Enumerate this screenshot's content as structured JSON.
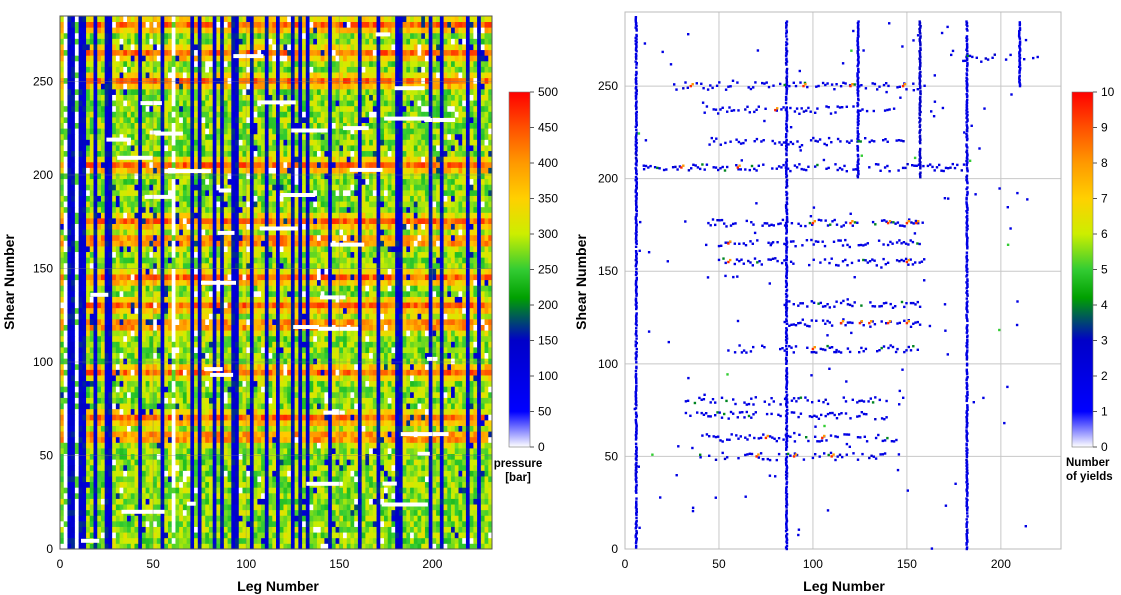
{
  "chart_data": [
    {
      "type": "heatmap",
      "xlabel": "Leg Number",
      "ylabel": "Shear Number",
      "xlim": [
        0,
        232
      ],
      "ylim": [
        0,
        285
      ],
      "xticks": [
        0,
        50,
        100,
        150,
        200
      ],
      "yticks": [
        0,
        50,
        100,
        150,
        200,
        250
      ],
      "grid": true,
      "colorbar": {
        "label_line1": "pressure",
        "label_line2": "[bar]",
        "min": 0,
        "max": 500,
        "ticks": [
          0,
          50,
          100,
          150,
          200,
          250,
          300,
          350,
          400,
          450,
          500
        ]
      },
      "stripes": {
        "blue_legs": [
          4,
          6,
          10,
          13,
          18,
          24,
          27,
          42,
          55,
          70,
          75,
          82,
          86,
          93,
          95,
          103,
          110,
          116,
          125,
          128,
          133,
          145,
          160,
          170,
          180,
          181,
          182,
          198,
          205,
          219,
          225
        ],
        "white_legs": [
          2,
          3,
          9,
          22,
          30,
          48,
          61
        ],
        "red_shear_bands": [
          205,
          175,
          165,
          130,
          120,
          70,
          60,
          250,
          265,
          280,
          145,
          95
        ]
      }
    },
    {
      "type": "scatter",
      "xlabel": "Leg Number",
      "ylabel": "Shear Number",
      "xlim": [
        0,
        232
      ],
      "ylim": [
        0,
        290
      ],
      "xticks": [
        0,
        50,
        100,
        150,
        200
      ],
      "yticks": [
        0,
        50,
        100,
        150,
        200,
        250
      ],
      "grid": true,
      "colorbar": {
        "label_line1": "Number",
        "label_line2": "of yields",
        "min": 0,
        "max": 10,
        "ticks": [
          0,
          1,
          2,
          3,
          4,
          5,
          6,
          7,
          8,
          9,
          10
        ]
      },
      "columns": [
        {
          "x": 6,
          "y_range": [
            0,
            288
          ],
          "value": 2
        },
        {
          "x": 86,
          "y_range": [
            0,
            285
          ],
          "value": 2
        },
        {
          "x": 182,
          "y_range": [
            0,
            285
          ],
          "value": 2
        },
        {
          "x": 157,
          "y_range": [
            200,
            285
          ],
          "value": 3
        },
        {
          "x": 124,
          "y_range": [
            200,
            285
          ],
          "value": 2
        },
        {
          "x": 210,
          "y_range": [
            250,
            285
          ],
          "value": 2
        }
      ],
      "rows": [
        {
          "y": 250,
          "x_range": [
            25,
            160
          ],
          "value": 2,
          "hot": [
            35,
            95,
            120,
            148
          ]
        },
        {
          "y": 265,
          "x_range": [
            180,
            220
          ],
          "value": 2,
          "hot": []
        },
        {
          "y": 237,
          "x_range": [
            40,
            145
          ],
          "value": 2,
          "hot": [
            80
          ]
        },
        {
          "y": 220,
          "x_range": [
            45,
            150
          ],
          "value": 2,
          "hot": []
        },
        {
          "y": 206,
          "x_range": [
            10,
            182
          ],
          "value": 2,
          "hot": [
            30,
            60
          ]
        },
        {
          "y": 176,
          "x_range": [
            42,
            160
          ],
          "value": 2,
          "hot": [
            100,
            120,
            140,
            150,
            155
          ]
        },
        {
          "y": 165,
          "x_range": [
            50,
            160
          ],
          "value": 2,
          "hot": [
            55
          ]
        },
        {
          "y": 155,
          "x_range": [
            50,
            160
          ],
          "value": 2,
          "hot": [
            55,
            150
          ]
        },
        {
          "y": 132,
          "x_range": [
            85,
            158
          ],
          "value": 2,
          "hot": []
        },
        {
          "y": 122,
          "x_range": [
            85,
            157
          ],
          "value": 2,
          "hot": [
            115,
            125,
            130,
            140,
            150
          ]
        },
        {
          "y": 108,
          "x_range": [
            55,
            158
          ],
          "value": 2,
          "hot": [
            100
          ]
        },
        {
          "y": 80,
          "x_range": [
            30,
            140
          ],
          "value": 2,
          "hot": []
        },
        {
          "y": 72,
          "x_range": [
            30,
            140
          ],
          "value": 2,
          "hot": []
        },
        {
          "y": 60,
          "x_range": [
            40,
            145
          ],
          "value": 2,
          "hot": [
            75,
            105
          ]
        },
        {
          "y": 50,
          "x_range": [
            40,
            140
          ],
          "value": 2,
          "hot": [
            70,
            90,
            110
          ]
        }
      ]
    }
  ]
}
